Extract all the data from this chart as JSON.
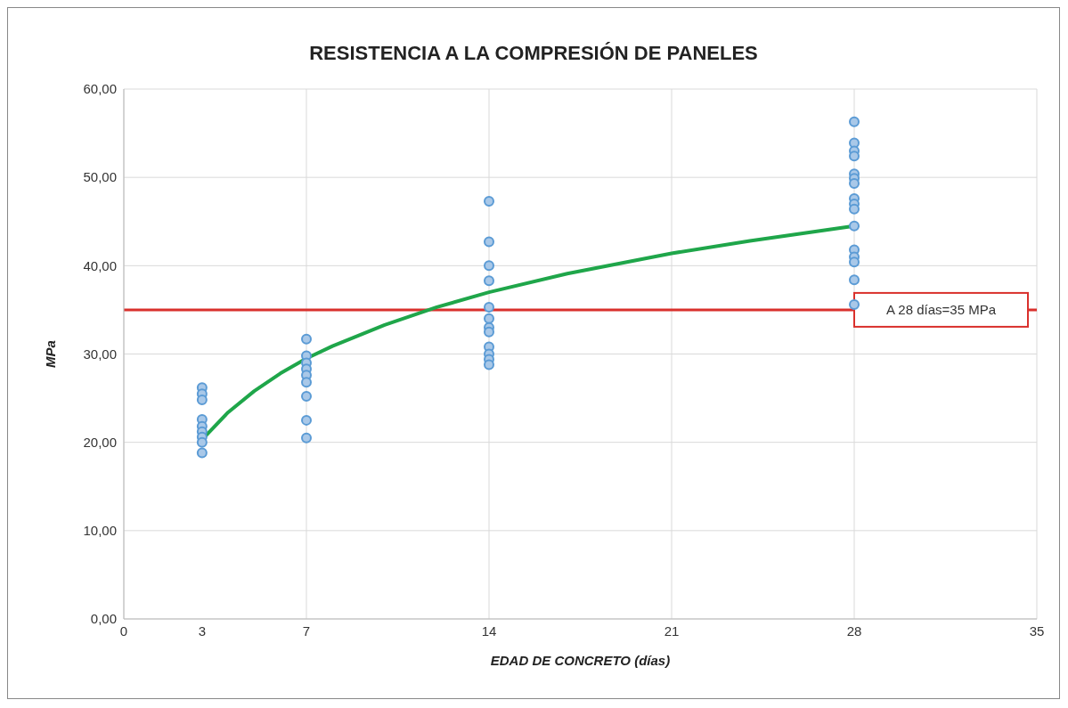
{
  "chart_data": {
    "type": "scatter",
    "title": "RESISTENCIA A LA COMPRESIÓN DE PANELES",
    "xlabel": "EDAD DE CONCRETO (días)",
    "ylabel": "MPa",
    "series": [
      {
        "color": "#5b9bd5",
        "x": [
          3,
          3,
          3,
          3,
          3,
          3,
          3,
          3,
          3,
          7,
          7,
          7,
          7,
          7,
          7,
          7,
          7,
          7,
          14,
          14,
          14,
          14,
          14,
          14,
          14,
          14,
          14,
          14,
          14,
          14,
          28,
          28,
          28,
          28,
          28,
          28,
          28,
          28,
          28,
          28,
          28,
          28,
          28,
          28,
          28,
          28
        ],
        "values": [
          26.2,
          25.5,
          24.8,
          22.6,
          21.8,
          21.2,
          20.6,
          20.0,
          18.8,
          31.7,
          29.8,
          29.0,
          28.3,
          27.6,
          26.8,
          25.2,
          22.5,
          20.5,
          47.3,
          42.7,
          40.0,
          38.3,
          35.3,
          34.0,
          33.0,
          32.5,
          30.8,
          30.0,
          29.4,
          28.8,
          56.3,
          53.9,
          53.0,
          52.4,
          50.4,
          49.9,
          49.3,
          47.6,
          47.0,
          46.4,
          44.5,
          41.8,
          41.0,
          40.4,
          38.4,
          35.6
        ]
      },
      {
        "type": "line",
        "marker": "none",
        "color": "#1fa64a",
        "x": [
          3,
          4,
          5,
          6,
          7,
          8,
          10,
          12,
          14,
          17,
          21,
          24,
          28
        ],
        "values": [
          20.3,
          23.4,
          25.8,
          27.8,
          29.5,
          30.9,
          33.3,
          35.3,
          37.0,
          39.1,
          41.4,
          42.8,
          44.5
        ]
      }
    ],
    "xlim": [
      0,
      35
    ],
    "xticks": [
      0,
      {
        "value": 3,
        "label": "3"
      },
      7,
      14,
      21,
      28,
      35
    ],
    "ylim": [
      0,
      60
    ],
    "yticks": [
      {
        "value": 0,
        "label": "0,00"
      },
      {
        "value": 10,
        "label": "10,00"
      },
      {
        "value": 20,
        "label": "20,00"
      },
      {
        "value": 30,
        "label": "30,00"
      },
      {
        "value": 40,
        "label": "40,00"
      },
      {
        "value": 50,
        "label": "50,00"
      },
      {
        "value": 60,
        "label": "60,00"
      }
    ],
    "ref_lines": [
      {
        "axis": "y",
        "value": 35,
        "label": "A 28 días=35 MPa",
        "color": "#d9302c"
      }
    ],
    "grid": true,
    "legend": false,
    "marker": "circle"
  }
}
